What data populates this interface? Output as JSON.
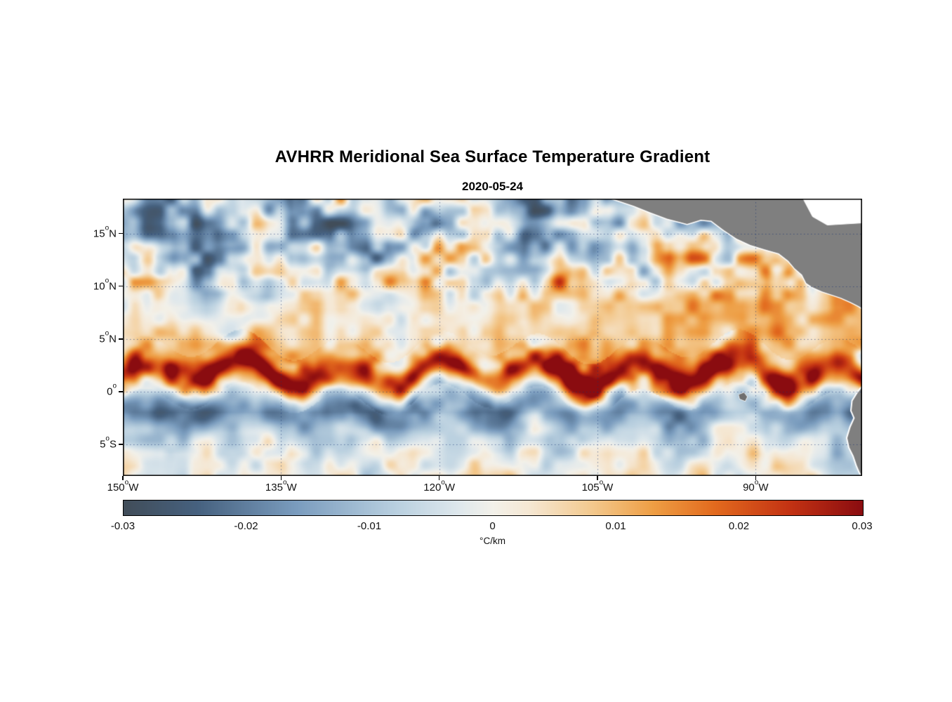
{
  "figure": {
    "title": "AVHRR Meridional Sea Surface Temperature Gradient",
    "subtitle": "2020-05-24"
  },
  "chart_data": {
    "type": "heatmap",
    "title": "AVHRR Meridional Sea Surface Temperature Gradient",
    "subtitle_date": "2020-05-24",
    "description": "Satellite map of meridional (north-south) sea surface temperature gradient over the eastern tropical Pacific. A strong positive (red) front meanders along 1-3N across the basin (tropical instability waves), with a negative (blue) band just south of the equator, scattered negative patches north of 10N, and warm-gradient patches near 8-12N east of 120W. Gray land: Mexico / Central America (upper right), Galapagos (small island near 91W, 0.5S) and northwestern South America (lower right).",
    "extent": {
      "lon_min": -150.0,
      "lon_max": -79.9,
      "lat_min": -8.0,
      "lat_max": 18.3
    },
    "x_axis": {
      "ticks": [
        {
          "value": -150,
          "pre": "150",
          "sup": "o",
          "post": "W"
        },
        {
          "value": -135,
          "pre": "135",
          "sup": "o",
          "post": "W"
        },
        {
          "value": -120,
          "pre": "120",
          "sup": "o",
          "post": "W"
        },
        {
          "value": -105,
          "pre": "105",
          "sup": "o",
          "post": "W"
        },
        {
          "value": -90,
          "pre": "90",
          "sup": "o",
          "post": "W"
        }
      ]
    },
    "y_axis": {
      "ticks": [
        {
          "value": 15,
          "pre": "15",
          "sup": "o",
          "post": "N"
        },
        {
          "value": 10,
          "pre": "10",
          "sup": "o",
          "post": "N"
        },
        {
          "value": 5,
          "pre": "5",
          "sup": "o",
          "post": "N"
        },
        {
          "value": 0,
          "pre": "0",
          "sup": "o",
          "post": ""
        },
        {
          "value": -5,
          "pre": "5",
          "sup": "o",
          "post": "S"
        }
      ]
    },
    "grid": {
      "style": "dotted",
      "color": "rgba(20,50,115,0.55)",
      "lat_lines": [
        15,
        10,
        5,
        0,
        -5
      ],
      "lon_lines": [
        -150,
        -135,
        -120,
        -105,
        -90
      ]
    },
    "colorbar": {
      "min": -0.03,
      "max": 0.03,
      "unit": "°C/km",
      "ticks": [
        {
          "value": -0.03,
          "label": "-0.03"
        },
        {
          "value": -0.02,
          "label": "-0.02"
        },
        {
          "value": -0.01,
          "label": "-0.01"
        },
        {
          "value": 0,
          "label": "0"
        },
        {
          "value": 0.01,
          "label": "0.01"
        },
        {
          "value": 0.02,
          "label": "0.02"
        },
        {
          "value": 0.03,
          "label": "0.03"
        }
      ]
    },
    "colormap": [
      {
        "v": -0.03,
        "c": "#414d59"
      },
      {
        "v": -0.024,
        "c": "#46617f"
      },
      {
        "v": -0.016,
        "c": "#7a9cbe"
      },
      {
        "v": -0.008,
        "c": "#b8cfdf"
      },
      {
        "v": -0.003,
        "c": "#dde7ec"
      },
      {
        "v": 0.0,
        "c": "#f3f1ea"
      },
      {
        "v": 0.003,
        "c": "#f5e7d2"
      },
      {
        "v": 0.008,
        "c": "#f3c98e"
      },
      {
        "v": 0.013,
        "c": "#ee9e44"
      },
      {
        "v": 0.018,
        "c": "#e26a1e"
      },
      {
        "v": 0.024,
        "c": "#c43313"
      },
      {
        "v": 0.03,
        "c": "#8a0c10"
      }
    ],
    "base_grid": {
      "comment": "Coarse background field estimated visually from the image (degC/km); lats descending, lons ascending",
      "lats": [
        18,
        16,
        14,
        12,
        10,
        8,
        6,
        4,
        2,
        0,
        -2,
        -4,
        -6,
        -8
      ],
      "lons": [
        -150,
        -145,
        -140,
        -135,
        -130,
        -125,
        -120,
        -115,
        -110,
        -105,
        -100,
        -95,
        -90,
        -85,
        -80
      ],
      "values": [
        [
          -0.01,
          -0.013,
          -0.007,
          -0.012,
          -0.009,
          -0.013,
          -0.008,
          -0.011,
          -0.014,
          -0.009,
          -0.012,
          -0.007,
          -0.004,
          -0.002,
          -0.003
        ],
        [
          -0.012,
          -0.007,
          -0.013,
          -0.008,
          -0.012,
          -0.009,
          -0.012,
          -0.007,
          -0.01,
          -0.013,
          -0.008,
          -0.005,
          0.001,
          -0.002,
          -0.001
        ],
        [
          -0.007,
          -0.011,
          -0.006,
          -0.01,
          -0.007,
          -0.011,
          -0.006,
          -0.009,
          -0.011,
          -0.006,
          0.002,
          0.005,
          0.002,
          -0.003,
          -0.002
        ],
        [
          -0.009,
          -0.005,
          -0.009,
          -0.004,
          -0.008,
          -0.005,
          -0.007,
          -0.004,
          -0.002,
          0.003,
          0.006,
          0.004,
          0.006,
          0.003,
          0.001
        ],
        [
          -0.004,
          -0.006,
          -0.003,
          -0.005,
          -0.002,
          -0.004,
          -0.002,
          0.002,
          0.005,
          0.007,
          0.009,
          0.007,
          0.009,
          0.006,
          0.004
        ],
        [
          -0.001,
          0.001,
          -0.002,
          0.001,
          -0.001,
          0.002,
          0.004,
          0.005,
          0.007,
          0.009,
          0.01,
          0.009,
          0.011,
          0.008,
          0.006
        ],
        [
          0.002,
          0.003,
          0.002,
          0.004,
          0.002,
          0.004,
          0.005,
          0.004,
          0.006,
          0.005,
          0.008,
          0.007,
          0.009,
          0.01,
          0.007
        ],
        [
          0.005,
          0.006,
          0.005,
          0.007,
          0.006,
          0.007,
          0.006,
          0.005,
          0.006,
          0.007,
          0.008,
          0.009,
          0.008,
          0.01,
          0.009
        ],
        [
          0.007,
          0.008,
          0.009,
          0.008,
          0.009,
          0.008,
          0.009,
          0.007,
          0.006,
          0.007,
          0.008,
          0.009,
          0.01,
          0.011,
          0.01
        ],
        [
          0.003,
          0.004,
          0.006,
          0.005,
          0.004,
          0.006,
          0.005,
          0.004,
          0.003,
          0.004,
          0.006,
          0.008,
          0.009,
          0.01,
          0.008
        ],
        [
          -0.008,
          -0.009,
          -0.01,
          -0.011,
          -0.009,
          -0.01,
          -0.008,
          -0.009,
          -0.007,
          -0.008,
          -0.009,
          -0.007,
          -0.005,
          -0.004,
          -0.006
        ],
        [
          -0.005,
          -0.006,
          -0.003,
          -0.006,
          -0.005,
          -0.003,
          -0.006,
          -0.005,
          -0.006,
          -0.005,
          -0.008,
          -0.005,
          -0.003,
          -0.004,
          -0.003
        ],
        [
          -0.003,
          0.001,
          -0.004,
          -0.001,
          -0.003,
          0.001,
          -0.003,
          -0.001,
          -0.004,
          -0.001,
          -0.003,
          -0.004,
          0.002,
          -0.004,
          -0.006
        ],
        [
          0.0,
          -0.003,
          0.001,
          -0.001,
          0.0,
          -0.003,
          0.001,
          0.0,
          -0.003,
          -0.001,
          0.0,
          0.002,
          -0.001,
          0.001,
          -0.003
        ]
      ]
    },
    "equatorial_front": {
      "comment": "Meandering positive SST-gradient front (tropical instability waves) and negative trough south of it",
      "mean_lat": 1.7,
      "meander_amp_deg": 1.25,
      "meander_wavelength_deg": 9.4,
      "peak_value": 0.027,
      "front_width_deg": 1.35,
      "trough_offset_deg": -3.3,
      "trough_value": -0.013,
      "trough_width_deg": 1.8
    },
    "land": {
      "color": "#7f7f7f",
      "polygons": [
        {
          "name": "mexico-central-america",
          "fill": "#7f7f7f",
          "stroke": "#ffffff",
          "stroke_width": 3,
          "close_via": "top-right",
          "points": [
            [
              -103.6,
              18.3
            ],
            [
              -101.5,
              17.6
            ],
            [
              -100.0,
              17.0
            ],
            [
              -98.4,
              16.4
            ],
            [
              -96.5,
              15.9
            ],
            [
              -95.2,
              16.3
            ],
            [
              -94.2,
              16.2
            ],
            [
              -93.0,
              15.3
            ],
            [
              -91.8,
              14.5
            ],
            [
              -90.5,
              13.9
            ],
            [
              -89.2,
              13.5
            ],
            [
              -87.8,
              13.1
            ],
            [
              -86.9,
              12.4
            ],
            [
              -86.3,
              11.7
            ],
            [
              -85.6,
              11.1
            ],
            [
              -85.2,
              10.3
            ],
            [
              -84.6,
              9.9
            ],
            [
              -83.7,
              9.5
            ],
            [
              -82.8,
              9.2
            ],
            [
              -81.9,
              8.9
            ],
            [
              -81.0,
              8.5
            ],
            [
              -80.2,
              8.1
            ],
            [
              -79.9,
              7.9
            ],
            [
              -79.9,
              18.3
            ]
          ]
        },
        {
          "name": "caribbean-sea-mask",
          "fill": "#ffffff",
          "stroke": "#ffffff",
          "stroke_width": 1,
          "points": [
            [
              -85.5,
              18.3
            ],
            [
              -79.9,
              18.3
            ],
            [
              -79.9,
              16.0
            ],
            [
              -83.2,
              15.8
            ],
            [
              -84.6,
              16.6
            ],
            [
              -85.5,
              18.3
            ]
          ]
        },
        {
          "name": "galapagos-islands",
          "fill": "#6f6f6f",
          "stroke": "#ffffff",
          "stroke_width": 1.5,
          "points": [
            [
              -91.6,
              -0.3
            ],
            [
              -91.1,
              -0.1
            ],
            [
              -90.8,
              -0.5
            ],
            [
              -91.0,
              -0.9
            ],
            [
              -91.5,
              -0.7
            ]
          ]
        },
        {
          "name": "south-america-northwest",
          "fill": "#7f7f7f",
          "stroke": "#ffffff",
          "stroke_width": 4,
          "points": [
            [
              -79.9,
              0.4
            ],
            [
              -80.3,
              -0.1
            ],
            [
              -80.8,
              -0.9
            ],
            [
              -80.9,
              -1.8
            ],
            [
              -80.6,
              -2.5
            ],
            [
              -81.0,
              -3.4
            ],
            [
              -81.3,
              -4.4
            ],
            [
              -81.1,
              -5.3
            ],
            [
              -80.7,
              -6.1
            ],
            [
              -80.4,
              -7.0
            ],
            [
              -80.1,
              -7.7
            ],
            [
              -79.9,
              -8.0
            ]
          ]
        }
      ]
    }
  }
}
